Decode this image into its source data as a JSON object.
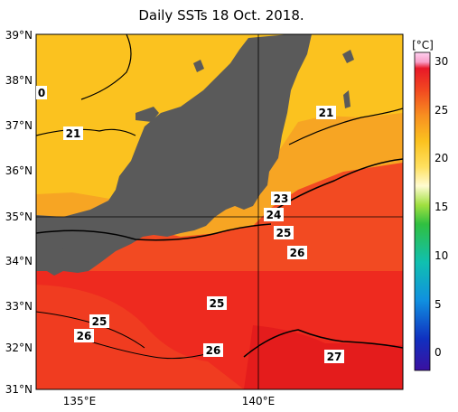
{
  "title": "Daily SSTs 18 Oct. 2018.",
  "colorbar": {
    "unit": "[°C]",
    "ticks": [
      "30",
      "25",
      "20",
      "15",
      "10",
      "5",
      "0"
    ]
  },
  "map": {
    "lat_labels": [
      "39°N",
      "38°N",
      "37°N",
      "36°N",
      "35°N",
      "34°N",
      "33°N",
      "32°N",
      "31°N"
    ],
    "lon_labels": [
      "135°E",
      "140°E"
    ]
  },
  "contour_labels": [
    "0",
    "21",
    "21",
    "23",
    "24",
    "25",
    "26",
    "25",
    "25",
    "26",
    "26",
    "27"
  ],
  "colors": {
    "land": "#5a5a5a",
    "warm27": "#ee2a1f",
    "warm25": "#f45023",
    "warm23": "#f8a323",
    "cool21": "#fbc71f"
  }
}
